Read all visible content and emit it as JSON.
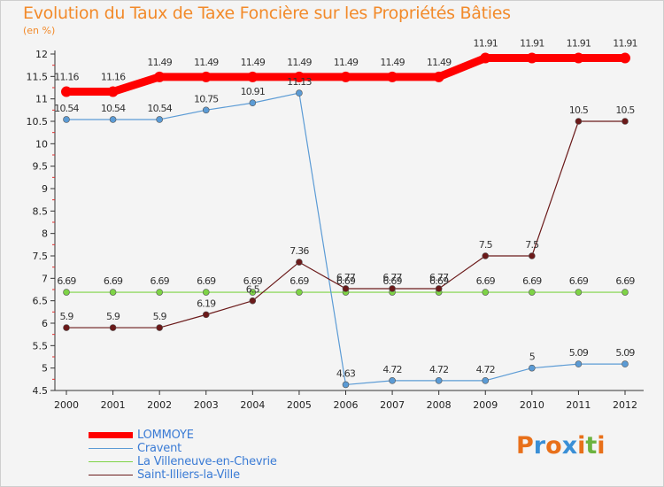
{
  "title": "Evolution du Taux de Taxe Foncière sur les Propriétés Bâties",
  "unit_label": "(en %)",
  "logo": {
    "letters": [
      "P",
      "r",
      "o",
      "x",
      "i",
      "t",
      "i"
    ],
    "colors": [
      "#e8701a",
      "#3a8fd6",
      "#e8701a",
      "#3a8fd6",
      "#e8701a",
      "#6cb33f",
      "#e8701a"
    ]
  },
  "chart_data": {
    "type": "line",
    "x": [
      "2000",
      "2001",
      "2002",
      "2003",
      "2004",
      "2005",
      "2006",
      "2007",
      "2008",
      "2009",
      "2010",
      "2011",
      "2012"
    ],
    "y_ticks": [
      "4.5",
      "5",
      "5.5",
      "6",
      "6.5",
      "7",
      "7.5",
      "8",
      "8.5",
      "9",
      "9.5",
      "10",
      "10.5",
      "11",
      "11.5",
      "12"
    ],
    "ylim": [
      4.5,
      12
    ],
    "grid": false,
    "legend_position": "bottom-left",
    "series": [
      {
        "name": "LOMMOYE",
        "color": "#ff0000",
        "values": [
          11.16,
          11.16,
          11.49,
          11.49,
          11.49,
          11.49,
          11.49,
          11.49,
          11.49,
          11.91,
          11.91,
          11.91,
          11.91
        ],
        "labels": [
          "11.16",
          "11.16",
          "11.49",
          "11.49",
          "11.49",
          "11.49",
          "11.49",
          "11.49",
          "11.49",
          "11.91",
          "11.91",
          "11.91",
          "11.91"
        ]
      },
      {
        "name": "Cravent",
        "color": "#5b9bd5",
        "values": [
          10.54,
          10.54,
          10.54,
          10.75,
          10.91,
          11.13,
          4.63,
          4.72,
          4.72,
          4.72,
          5,
          5.09,
          5.09
        ],
        "labels": [
          "10.54",
          "10.54",
          "10.54",
          "10.75",
          "10.91",
          "11.13",
          "4.63",
          "4.72",
          "4.72",
          "4.72",
          "5",
          "5.09",
          "5.09"
        ]
      },
      {
        "name": "La Villeneuve-en-Chevrie",
        "color": "#7ed346",
        "values": [
          6.69,
          6.69,
          6.69,
          6.69,
          6.69,
          6.69,
          6.69,
          6.69,
          6.69,
          6.69,
          6.69,
          6.69,
          6.69
        ],
        "labels": [
          "6.69",
          "6.69",
          "6.69",
          "6.69",
          "6.69",
          "6.69",
          "6.69",
          "6.69",
          "6.69",
          "6.69",
          "6.69",
          "6.69",
          "6.69"
        ]
      },
      {
        "name": "Saint-Illiers-la-Ville",
        "color": "#6b1a1a",
        "values": [
          5.9,
          5.9,
          5.9,
          6.19,
          6.5,
          7.36,
          6.77,
          6.77,
          6.77,
          7.5,
          7.5,
          10.5,
          10.5
        ],
        "labels": [
          "5.9",
          "5.9",
          "5.9",
          "6.19",
          "6.5",
          "7.36",
          "6.77",
          "6.77",
          "6.77",
          "7.5",
          "7.5",
          "10.5",
          "10.5"
        ]
      }
    ]
  }
}
